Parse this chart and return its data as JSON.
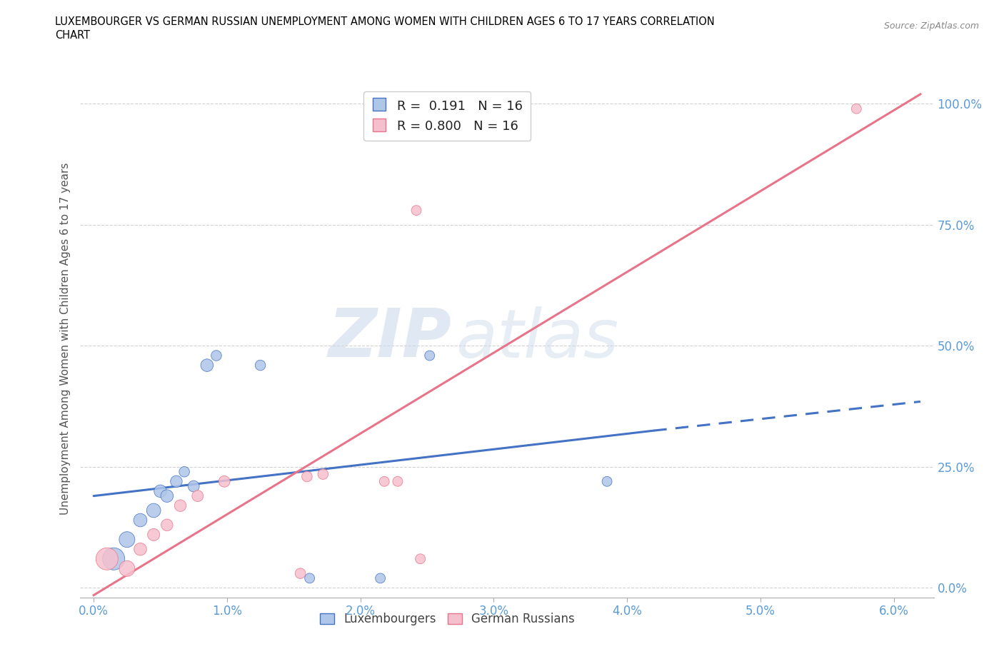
{
  "title_line1": "LUXEMBOURGER VS GERMAN RUSSIAN UNEMPLOYMENT AMONG WOMEN WITH CHILDREN AGES 6 TO 17 YEARS CORRELATION",
  "title_line2": "CHART",
  "source_text": "Source: ZipAtlas.com",
  "ylabel": "Unemployment Among Women with Children Ages 6 to 17 years",
  "xlabel_ticks": [
    "0.0%",
    "1.0%",
    "2.0%",
    "3.0%",
    "4.0%",
    "5.0%",
    "6.0%"
  ],
  "xlabel_vals": [
    0.0,
    1.0,
    2.0,
    3.0,
    4.0,
    5.0,
    6.0
  ],
  "ylabel_ticks": [
    "0.0%",
    "25.0%",
    "50.0%",
    "75.0%",
    "100.0%"
  ],
  "ylabel_vals": [
    0.0,
    25.0,
    50.0,
    75.0,
    100.0
  ],
  "xlim": [
    -0.1,
    6.3
  ],
  "ylim": [
    -2.0,
    105.0
  ],
  "lux_R": 0.191,
  "lux_N": 16,
  "gr_R": 0.8,
  "gr_N": 16,
  "lux_color": "#aec6e8",
  "gr_color": "#f5c0ce",
  "lux_line_color": "#4472c4",
  "gr_line_color": "#e8748a",
  "watermark_zip": "ZIP",
  "watermark_atlas": "atlas",
  "lux_points_x": [
    0.15,
    0.25,
    0.35,
    0.45,
    0.5,
    0.55,
    0.62,
    0.68,
    0.75,
    0.85,
    0.92,
    1.25,
    1.62,
    2.15,
    2.52,
    3.85
  ],
  "lux_points_y": [
    6.0,
    10.0,
    14.0,
    16.0,
    20.0,
    19.0,
    22.0,
    24.0,
    21.0,
    46.0,
    48.0,
    46.0,
    2.0,
    2.0,
    48.0,
    22.0
  ],
  "lux_sizes": [
    500,
    250,
    180,
    200,
    160,
    160,
    140,
    110,
    130,
    160,
    110,
    110,
    100,
    100,
    100,
    100
  ],
  "gr_points_x": [
    0.1,
    0.25,
    0.35,
    0.45,
    0.55,
    0.65,
    0.78,
    0.98,
    1.55,
    1.6,
    1.72,
    2.18,
    2.28,
    2.45,
    2.42,
    5.72
  ],
  "gr_points_y": [
    6.0,
    4.0,
    8.0,
    11.0,
    13.0,
    17.0,
    19.0,
    22.0,
    3.0,
    23.0,
    23.5,
    22.0,
    22.0,
    6.0,
    78.0,
    99.0
  ],
  "gr_sizes": [
    500,
    250,
    160,
    150,
    140,
    140,
    130,
    130,
    110,
    110,
    110,
    100,
    100,
    100,
    100,
    100
  ],
  "lux_trend_x0": 0.0,
  "lux_trend_x1": 4.2,
  "lux_trend_x2": 6.2,
  "lux_trend_y0": 19.0,
  "lux_trend_y1": 32.5,
  "lux_trend_y2": 38.5,
  "gr_trend_x0": 0.0,
  "gr_trend_x1": 6.2,
  "gr_trend_y0": -1.5,
  "gr_trend_y1": 102.0
}
